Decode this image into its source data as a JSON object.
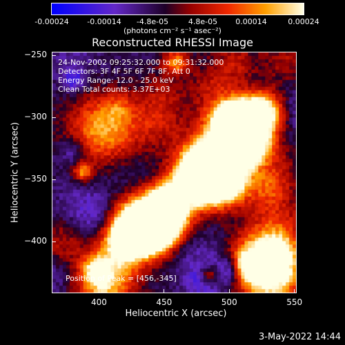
{
  "colorbar": {
    "ticks": [
      "-0.00024",
      "-0.00014",
      "-4.8e-05",
      "4.8e-05",
      "0.00014",
      "0.00024"
    ],
    "unit": "(photons cm⁻² s⁻¹ asec⁻²)"
  },
  "plot": {
    "title": "Reconstructed RHESSI Image",
    "annotations": [
      "24-Nov-2002 09:25:32.000 to 09:31:32.000",
      "Detectors: 3F 4F 5F 6F 7F 8F, Att 0",
      "Energy Range: 12.0 - 25.0 keV",
      "Clean     Total counts: 3.37E+03"
    ],
    "peak_label": "Position of Peak = [456,-345]"
  },
  "chart_data": {
    "type": "heatmap",
    "title": "Reconstructed RHESSI Image",
    "xlabel": "Heliocentric X (arcsec)",
    "ylabel": "Heliocentric Y (arcsec)",
    "xlim": [
      364,
      552
    ],
    "ylim": [
      -442,
      -247
    ],
    "x_ticks": [
      400,
      450,
      500,
      550
    ],
    "y_ticks": [
      -250,
      -300,
      -350,
      -400
    ],
    "peak": [
      456,
      -345
    ],
    "colorscale_range": [
      -0.00024,
      0.00024
    ]
  },
  "footer": {
    "date": "3-May-2022 14:44"
  }
}
